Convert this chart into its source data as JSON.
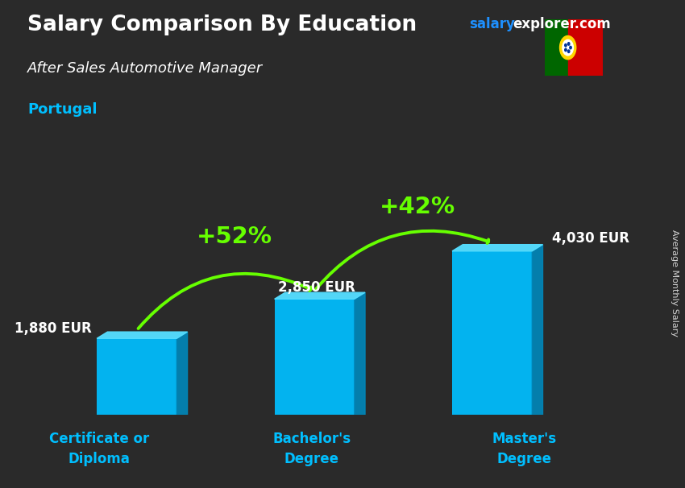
{
  "title": "Salary Comparison By Education",
  "subtitle": "After Sales Automotive Manager",
  "country": "Portugal",
  "watermark_salary": "salary",
  "watermark_rest": "explorer.com",
  "ylabel": "Average Monthly Salary",
  "categories": [
    "Certificate or\nDiploma",
    "Bachelor's\nDegree",
    "Master's\nDegree"
  ],
  "values": [
    1880,
    2850,
    4030
  ],
  "value_labels": [
    "1,880 EUR",
    "2,850 EUR",
    "4,030 EUR"
  ],
  "pct_labels": [
    "+52%",
    "+42%"
  ],
  "bar_face_color": "#00BFFF",
  "bar_top_color": "#55DDFF",
  "bar_side_color": "#0088BB",
  "pct_color": "#66FF00",
  "arrow_color": "#66FF00",
  "bg_color": "#2a2a2a",
  "title_color": "#FFFFFF",
  "subtitle_color": "#FFFFFF",
  "country_color": "#00BFFF",
  "cat_color": "#00BFFF",
  "value_label_color": "#FFFFFF",
  "watermark_color_salary": "#1E90FF",
  "watermark_color_rest": "#FFFFFF",
  "ylabel_color": "#FFFFFF",
  "figsize": [
    8.5,
    6.06
  ],
  "dpi": 100
}
